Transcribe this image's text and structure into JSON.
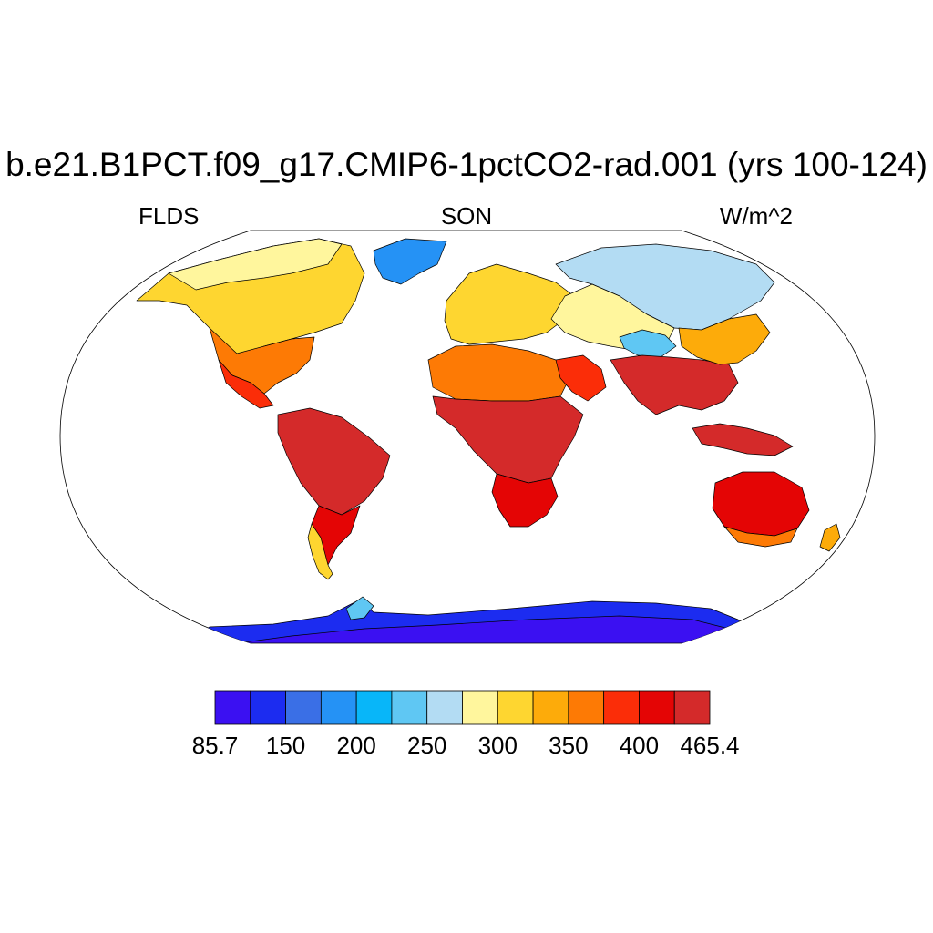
{
  "title": "b.e21.B1PCT.f09_g17.CMIP6-1pctCO2-rad.001 (yrs 100-124)",
  "left_label": "FLDS",
  "center_label": "SON",
  "right_label": "W/m^2",
  "colorbar": {
    "colors": [
      "#3b10f2",
      "#1c2cf0",
      "#3a6fe6",
      "#2592f5",
      "#08b6f9",
      "#5fc7f3",
      "#b3dcf3",
      "#fff69d",
      "#fed630",
      "#fdab0a",
      "#fd7a05",
      "#fb2d08",
      "#e40505",
      "#d42a2a"
    ],
    "labels": [
      "85.7",
      "150",
      "200",
      "250",
      "300",
      "350",
      "400",
      "465.4"
    ]
  },
  "map_regions": [
    {
      "name": "Greenland",
      "value": 150
    },
    {
      "name": "North America north",
      "value": 270
    },
    {
      "name": "North America south",
      "value": 370
    },
    {
      "name": "South America",
      "value": 440
    },
    {
      "name": "Africa north",
      "value": 400
    },
    {
      "name": "Africa central",
      "value": 440
    },
    {
      "name": "Europe",
      "value": 310
    },
    {
      "name": "Siberia",
      "value": 260
    },
    {
      "name": "Tibet",
      "value": 220
    },
    {
      "name": "South Asia",
      "value": 440
    },
    {
      "name": "Australia",
      "value": 400
    },
    {
      "name": "Antarctica",
      "value": 100
    }
  ]
}
